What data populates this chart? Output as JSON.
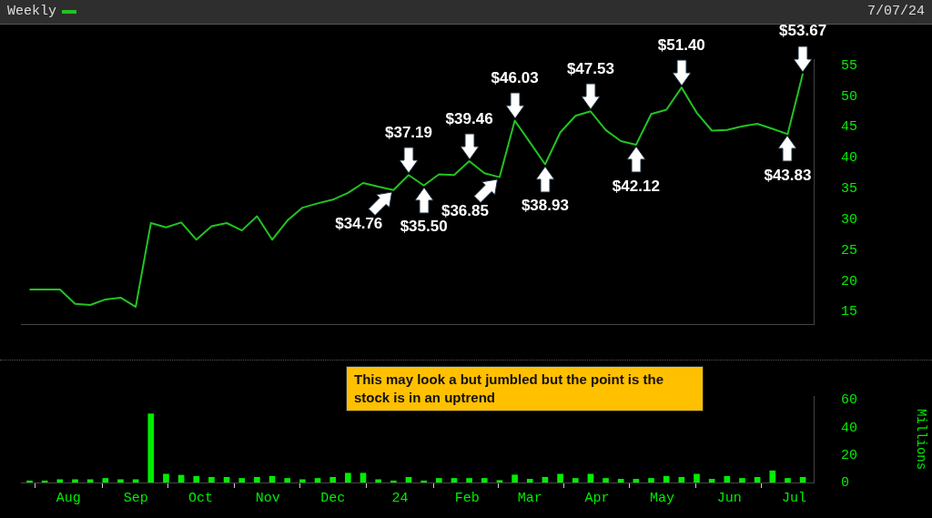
{
  "chart_data": [
    {
      "type": "line",
      "legend": "top left",
      "tick_labels": "y",
      "grid": false,
      "x": [
        "2023-07-14",
        "2023-07-21",
        "2023-07-28",
        "2023-08-04",
        "2023-08-11",
        "2023-08-18",
        "2023-08-25",
        "2023-09-01",
        "2023-09-08",
        "2023-09-15",
        "2023-09-22",
        "2023-09-29",
        "2023-10-06",
        "2023-10-13",
        "2023-10-20",
        "2023-10-27",
        "2023-11-03",
        "2023-11-10",
        "2023-11-17",
        "2023-11-24",
        "2023-12-01",
        "2023-12-08",
        "2023-12-15",
        "2023-12-22",
        "2023-12-29",
        "2024-01-05",
        "2024-01-12",
        "2024-01-19",
        "2024-01-26",
        "2024-02-02",
        "2024-02-09",
        "2024-02-16",
        "2024-02-23",
        "2024-03-01",
        "2024-03-08",
        "2024-03-15",
        "2024-03-22",
        "2024-03-29",
        "2024-04-05",
        "2024-04-12",
        "2024-04-19",
        "2024-04-26",
        "2024-05-03",
        "2024-05-10",
        "2024-05-17",
        "2024-05-24",
        "2024-05-31",
        "2024-06-07",
        "2024-06-14",
        "2024-06-21",
        "2024-06-28",
        "2024-07-05"
      ],
      "series": [
        {
          "name": "Weekly",
          "color": "#22c322",
          "values": [
            18.6,
            18.6,
            18.6,
            16.3,
            16.1,
            17.0,
            17.3,
            15.8,
            29.4,
            28.7,
            29.5,
            26.7,
            28.9,
            29.4,
            28.2,
            30.5,
            26.7,
            29.8,
            31.9,
            32.6,
            33.2,
            34.3,
            35.9,
            35.3,
            34.76,
            37.19,
            35.5,
            37.3,
            37.2,
            39.46,
            37.5,
            36.85,
            46.03,
            42.5,
            38.93,
            44.1,
            46.8,
            47.53,
            44.5,
            42.7,
            42.12,
            47.1,
            47.8,
            51.4,
            47.3,
            44.4,
            44.5,
            45.1,
            45.5,
            44.7,
            43.83,
            53.67
          ]
        }
      ],
      "xlim": [
        "2023-07-10",
        "2024-07-10"
      ],
      "ylim": [
        13,
        56
      ],
      "yticks": [
        15,
        20,
        25,
        30,
        35,
        40,
        45,
        50,
        55
      ],
      "annotations": [
        "7/07/24",
        {
          "text": "$34.76",
          "x": "2023-12-29",
          "y": 34.76
        },
        {
          "text": "$37.19",
          "x": "2024-01-05",
          "y": 37.19
        },
        {
          "text": "$35.50",
          "x": "2024-01-12",
          "y": 35.5
        },
        {
          "text": "$39.46",
          "x": "2024-02-02",
          "y": 39.46
        },
        {
          "text": "$36.85",
          "x": "2024-02-16",
          "y": 36.85
        },
        {
          "text": "$46.03",
          "x": "2024-02-23",
          "y": 46.03
        },
        {
          "text": "$38.93",
          "x": "2024-03-08",
          "y": 38.93
        },
        {
          "text": "$47.53",
          "x": "2024-03-29",
          "y": 47.53
        },
        {
          "text": "$42.12",
          "x": "2024-04-19",
          "y": 42.12
        },
        {
          "text": "$51.40",
          "x": "2024-05-10",
          "y": 51.4
        },
        {
          "text": "$53.67",
          "x": "2024-07-05",
          "y": 53.67
        },
        {
          "text": "$43.83",
          "x": "2024-06-28",
          "y": 43.83
        }
      ]
    },
    {
      "type": "bar",
      "grid": false,
      "ylabel": "Millions",
      "color": "#00ee00",
      "x": [
        "2023-07-14",
        "2023-07-21",
        "2023-07-28",
        "2023-08-04",
        "2023-08-11",
        "2023-08-18",
        "2023-08-25",
        "2023-09-01",
        "2023-09-08",
        "2023-09-15",
        "2023-09-22",
        "2023-09-29",
        "2023-10-06",
        "2023-10-13",
        "2023-10-20",
        "2023-10-27",
        "2023-11-03",
        "2023-11-10",
        "2023-11-17",
        "2023-11-24",
        "2023-12-01",
        "2023-12-08",
        "2023-12-15",
        "2023-12-22",
        "2023-12-29",
        "2024-01-05",
        "2024-01-12",
        "2024-01-19",
        "2024-01-26",
        "2024-02-02",
        "2024-02-09",
        "2024-02-16",
        "2024-02-23",
        "2024-03-01",
        "2024-03-08",
        "2024-03-15",
        "2024-03-22",
        "2024-03-29",
        "2024-04-05",
        "2024-04-12",
        "2024-04-19",
        "2024-04-26",
        "2024-05-03",
        "2024-05-10",
        "2024-05-17",
        "2024-05-24",
        "2024-05-31",
        "2024-06-07",
        "2024-06-14",
        "2024-06-21",
        "2024-06-28",
        "2024-07-05"
      ],
      "values": [
        1.2,
        1.2,
        2.1,
        2.1,
        2.1,
        3.0,
        2.1,
        2.1,
        50,
        6.1,
        5.3,
        4.5,
        3.8,
        3.8,
        3.0,
        3.8,
        4.5,
        3.0,
        2.1,
        3.0,
        3.8,
        6.8,
        6.8,
        2.1,
        1.2,
        3.8,
        1.2,
        3.0,
        3.0,
        3.0,
        3.0,
        1.5,
        5.5,
        2.4,
        3.8,
        6.1,
        3.0,
        6.1,
        3.0,
        2.4,
        2.4,
        3.0,
        4.5,
        3.8,
        6.1,
        2.4,
        4.5,
        3.0,
        3.8,
        8.5,
        3.0,
        3.8
      ],
      "xlim": [
        "2023-07-10",
        "2024-07-10"
      ],
      "xticks": [
        {
          "value": "2023-08-01",
          "label": "Aug"
        },
        {
          "value": "2023-09-01",
          "label": "Sep"
        },
        {
          "value": "2023-10-01",
          "label": "Oct"
        },
        {
          "value": "2023-11-01",
          "label": "Nov"
        },
        {
          "value": "2023-12-01",
          "label": "Dec"
        },
        {
          "value": "2024-01-01",
          "label": "24"
        },
        {
          "value": "2024-02-01",
          "label": "Feb"
        },
        {
          "value": "2024-03-01",
          "label": "Mar"
        },
        {
          "value": "2024-04-01",
          "label": "Apr"
        },
        {
          "value": "2024-05-01",
          "label": "May"
        },
        {
          "value": "2024-06-01",
          "label": "Jun"
        },
        {
          "value": "2024-07-01",
          "label": "Jul"
        }
      ],
      "ylim": [
        0,
        63
      ],
      "yticks": [
        0,
        20,
        40,
        60
      ],
      "annotations": [
        "This may look a but jumbled but the point is the stock is in an uptrend"
      ]
    }
  ]
}
